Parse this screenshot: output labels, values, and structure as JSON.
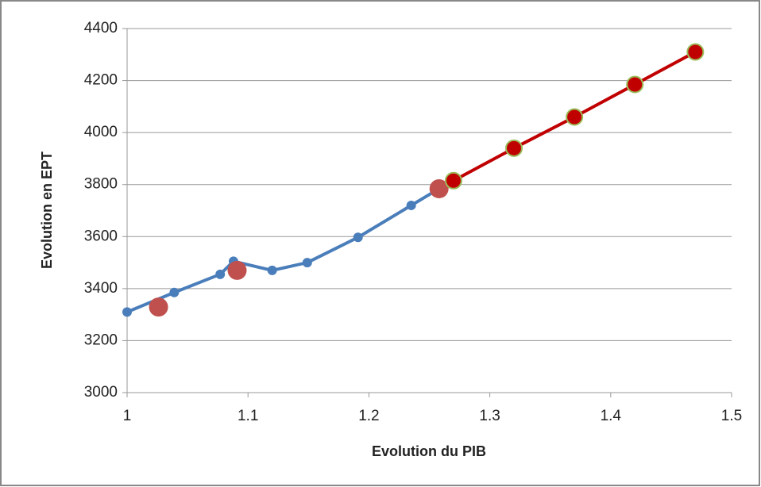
{
  "chart_data": {
    "type": "scatter-line",
    "x_label": "Evolution du PIB",
    "y_label": "Evolution en EPT",
    "xlim": [
      1,
      1.5
    ],
    "xticks": [
      1,
      1.1,
      1.2,
      1.3,
      1.4,
      1.5
    ],
    "ylim": [
      3000,
      4400
    ],
    "yticks": [
      3000,
      3200,
      3400,
      3600,
      3800,
      4000,
      4200,
      4400
    ],
    "grid": true,
    "series": [
      {
        "color": "#4a7ebb",
        "line": true,
        "marker_size": 6,
        "x": [
          1.0,
          1.039,
          1.077,
          1.088,
          1.12,
          1.149,
          1.191,
          1.235,
          1.258
        ],
        "values": [
          3310,
          3385,
          3455,
          3505,
          3470,
          3500,
          3597,
          3720,
          3784
        ]
      },
      {
        "color": "#c0504d",
        "line": false,
        "marker_size": 12,
        "x": [
          1.026,
          1.091,
          1.258
        ],
        "values": [
          3329,
          3470,
          3784
        ]
      },
      {
        "color": "#c00000",
        "line": true,
        "marker_size": 10,
        "marker_edge": "#9bbb59",
        "x": [
          1.27,
          1.32,
          1.37,
          1.42,
          1.47
        ],
        "values": [
          3815,
          3940,
          4060,
          4185,
          4310
        ]
      }
    ]
  }
}
